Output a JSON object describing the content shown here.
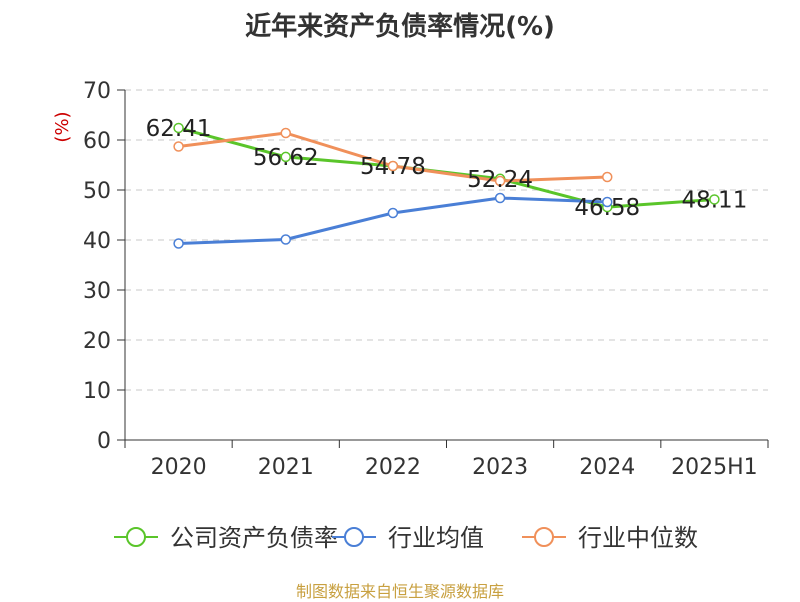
{
  "source_note": "制图数据来自恒生聚源数据库",
  "chart_data": {
    "type": "line",
    "title": "近年来资产负债率情况(%)",
    "ylabel": "(%)",
    "categories": [
      "2020",
      "2021",
      "2022",
      "2023",
      "2024",
      "2025H1"
    ],
    "ylim": [
      0,
      70
    ],
    "yticks": [
      0,
      10,
      20,
      30,
      40,
      50,
      60,
      70
    ],
    "grid": true,
    "legend": "bottom",
    "series": [
      {
        "name": "公司资产负债率",
        "color": "#5ac52a",
        "values": [
          62.41,
          56.62,
          54.78,
          52.24,
          46.58,
          48.11
        ],
        "labels": [
          "62.41",
          "56.62",
          "54.78",
          "52.24",
          "46.58",
          "48.11"
        ]
      },
      {
        "name": "行业均值",
        "color": "#4a7fd6",
        "values": [
          39.3,
          40.1,
          45.4,
          48.4,
          47.6,
          null
        ]
      },
      {
        "name": "行业中位数",
        "color": "#f0905a",
        "values": [
          58.7,
          61.4,
          54.8,
          51.8,
          52.6,
          null
        ]
      }
    ]
  }
}
